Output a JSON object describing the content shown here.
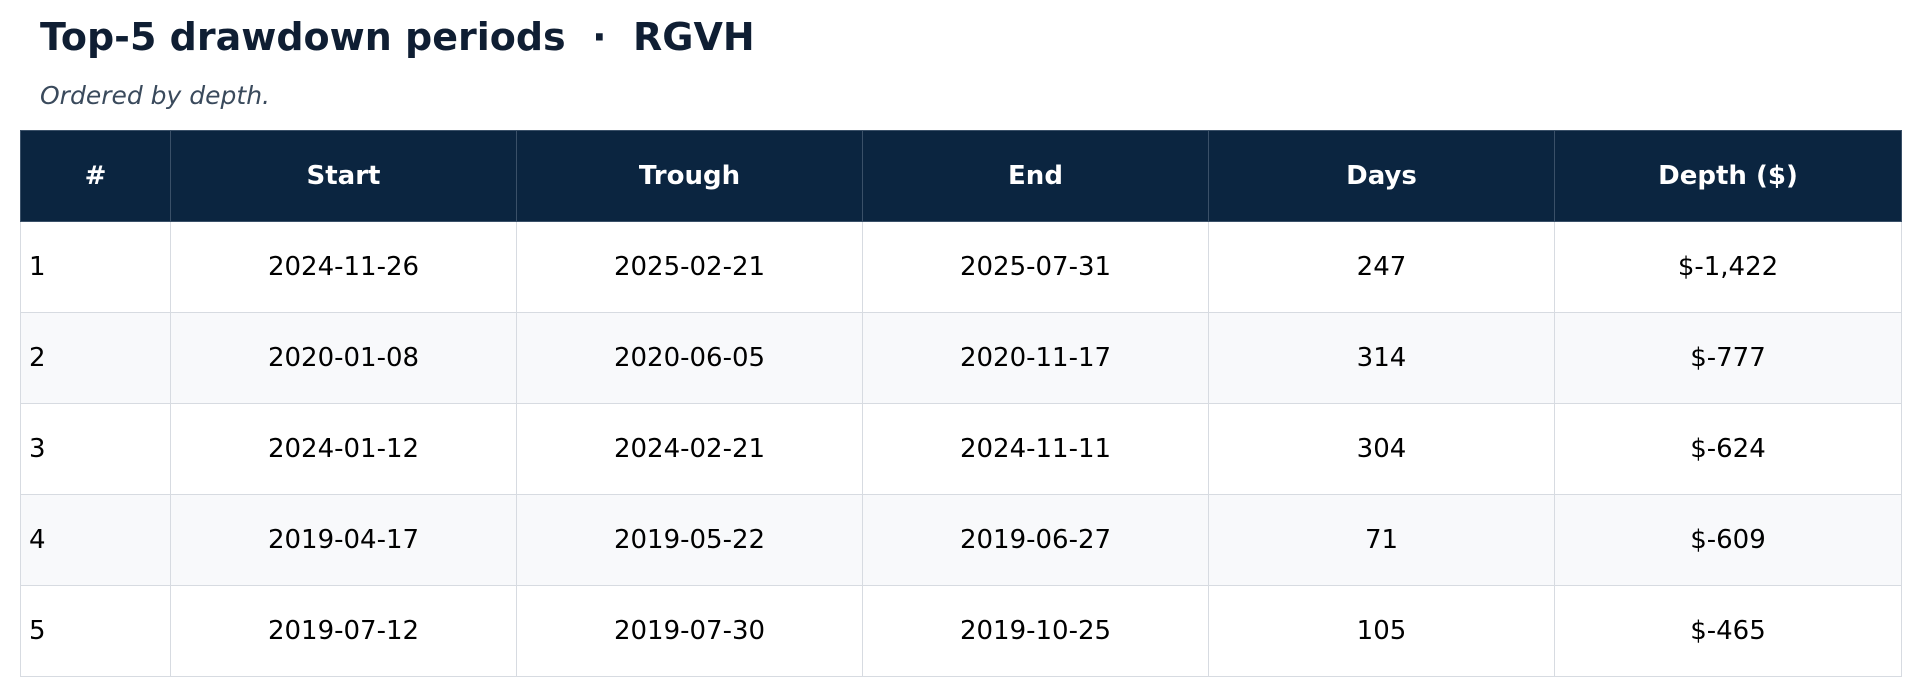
{
  "header": {
    "title": "Top-5 drawdown periods  ·  RGVH",
    "subtitle": "Ordered by depth."
  },
  "colors": {
    "header_bg": "#0b2540",
    "header_text": "#ffffff",
    "title_text": "#0f1e33",
    "row_alt_bg": "#f8f9fb",
    "grid_line": "#d7dbe1"
  },
  "chart_data": {
    "type": "table",
    "title": "Top-5 drawdown periods  ·  RGVH",
    "subtitle": "Ordered by depth.",
    "columns": [
      "#",
      "Start",
      "Trough",
      "End",
      "Days",
      "Depth ($)"
    ],
    "rows": [
      [
        "1",
        "2024-11-26",
        "2025-02-21",
        "2025-07-31",
        "247",
        "$-1,422"
      ],
      [
        "2",
        "2020-01-08",
        "2020-06-05",
        "2020-11-17",
        "314",
        "$-777"
      ],
      [
        "3",
        "2024-01-12",
        "2024-02-21",
        "2024-11-11",
        "304",
        "$-624"
      ],
      [
        "4",
        "2019-04-17",
        "2019-05-22",
        "2019-06-27",
        "71",
        "$-609"
      ],
      [
        "5",
        "2019-07-12",
        "2019-07-30",
        "2019-10-25",
        "105",
        "$-465"
      ]
    ]
  }
}
